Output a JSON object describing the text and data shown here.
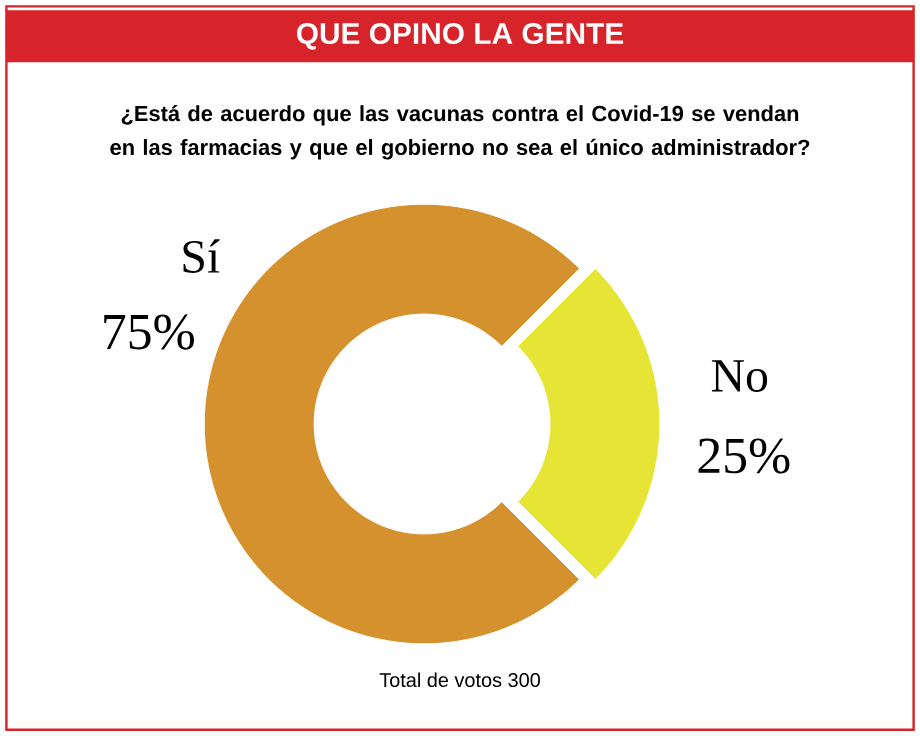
{
  "chart_data": {
    "type": "donut",
    "title": "QUE OPINO LA GENTE",
    "subtitle": "¿Está de acuerdo que las vacunas contra el Covid-19 se vendan en las farmacias y que el gobierno no sea el único administrador?",
    "categories": [
      "Sí",
      "No"
    ],
    "values": [
      75,
      25
    ],
    "colors": [
      "#d4912e",
      "#e6e434"
    ],
    "value_labels": [
      "75%",
      "25%"
    ],
    "annotations": [
      "Total de votos 300"
    ]
  }
}
